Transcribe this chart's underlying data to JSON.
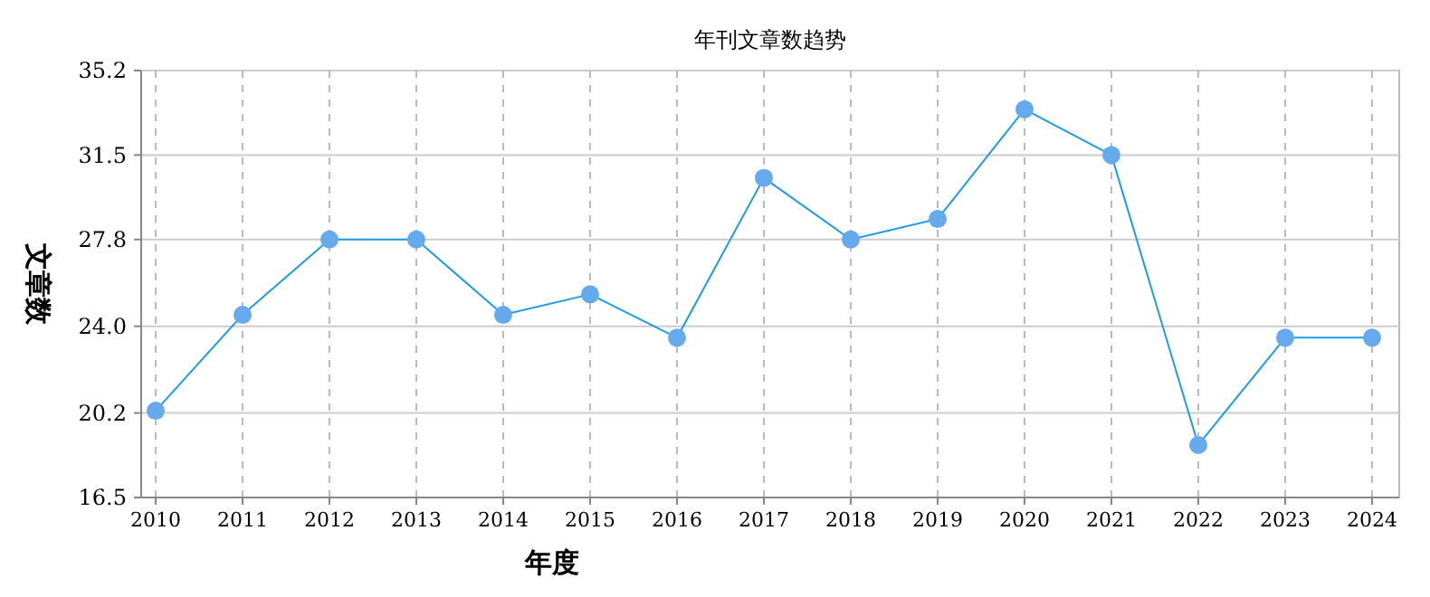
{
  "chart_data": {
    "type": "line",
    "title": "年刊文章数趋势",
    "xlabel": "年度",
    "ylabel": "文章数",
    "categories": [
      "2010",
      "2011",
      "2012",
      "2013",
      "2014",
      "2015",
      "2016",
      "2017",
      "2018",
      "2019",
      "2020",
      "2021",
      "2022",
      "2023",
      "2024"
    ],
    "series": [
      {
        "color": "#1e9be8",
        "values": [
          20.3,
          24.5,
          27.8,
          27.8,
          24.5,
          25.4,
          23.5,
          30.5,
          27.8,
          28.7,
          33.5,
          31.5,
          18.8,
          23.5,
          23.5
        ]
      }
    ],
    "ylim": [
      16.5,
      35.2
    ],
    "yticks": [
      16.5,
      20.2,
      {
        "value": 24,
        "label": "24.0"
      },
      27.8,
      31.5,
      35.2
    ],
    "grid": true,
    "marker": "circle"
  }
}
